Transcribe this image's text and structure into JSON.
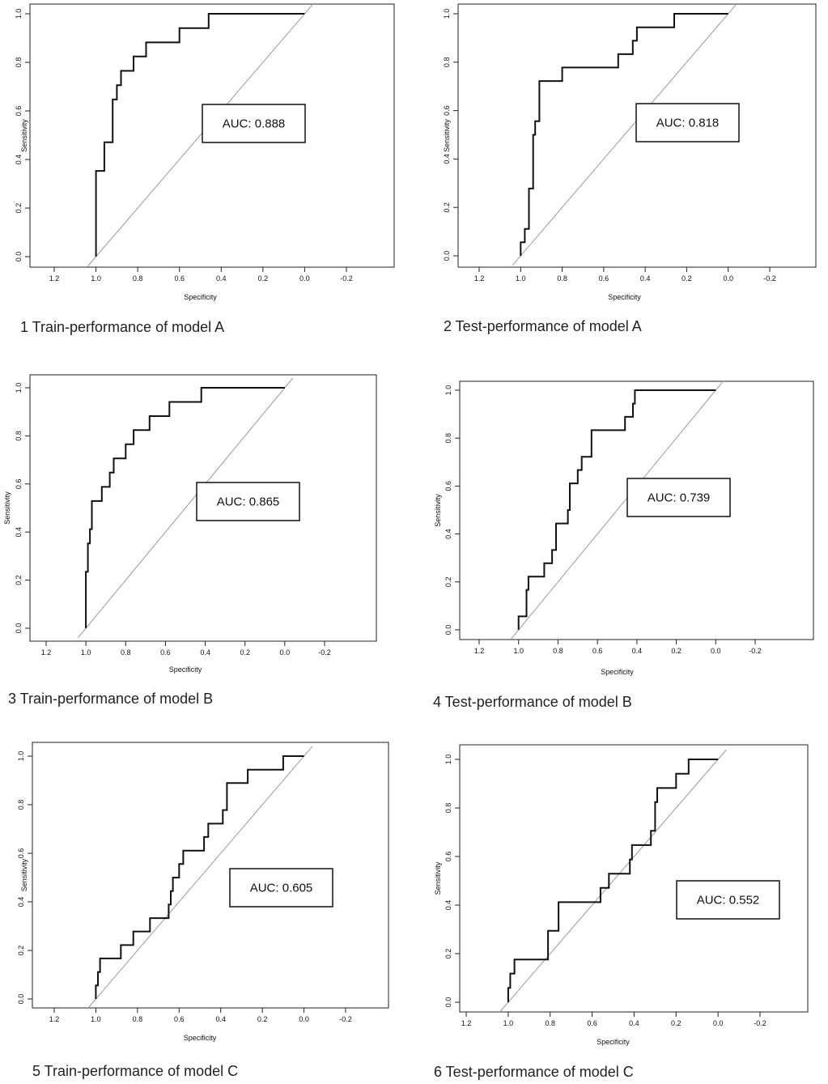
{
  "chart_data": [
    {
      "type": "line",
      "caption": "1 Train-performance of model A",
      "xlabel": "Specificity",
      "ylabel": "Sensitivity",
      "xlim": [
        1.2,
        -0.2
      ],
      "ylim": [
        0,
        1
      ],
      "x_ticks": [
        "1.2",
        "1.0",
        "0.8",
        "0.6",
        "0.4",
        "0.2",
        "0.0",
        "-0.2"
      ],
      "y_ticks": [
        "0.0",
        "0.2",
        "0.4",
        "0.6",
        "0.8",
        "1.0"
      ],
      "auc_label": "AUC:  0.888",
      "reference_line": [
        [
          1.0,
          0.0
        ],
        [
          0.0,
          1.0
        ]
      ],
      "series": [
        {
          "name": "ROC",
          "points": [
            [
              1.0,
              0.0
            ],
            [
              1.0,
              0.353
            ],
            [
              0.96,
              0.353
            ],
            [
              0.96,
              0.471
            ],
            [
              0.92,
              0.471
            ],
            [
              0.92,
              0.647
            ],
            [
              0.9,
              0.647
            ],
            [
              0.9,
              0.706
            ],
            [
              0.88,
              0.706
            ],
            [
              0.88,
              0.765
            ],
            [
              0.82,
              0.765
            ],
            [
              0.82,
              0.824
            ],
            [
              0.76,
              0.824
            ],
            [
              0.76,
              0.882
            ],
            [
              0.6,
              0.882
            ],
            [
              0.6,
              0.941
            ],
            [
              0.46,
              0.941
            ],
            [
              0.46,
              1.0
            ],
            [
              0.0,
              1.0
            ]
          ]
        }
      ]
    },
    {
      "type": "line",
      "caption": "2 Test-performance of model A",
      "xlabel": "Specificity",
      "ylabel": "Sensitivity",
      "xlim": [
        1.2,
        -0.2
      ],
      "ylim": [
        0,
        1
      ],
      "x_ticks": [
        "1.2",
        "1.0",
        "0.8",
        "0.6",
        "0.4",
        "0.2",
        "0.0",
        "-0.2"
      ],
      "y_ticks": [
        "0.0",
        "0.2",
        "0.4",
        "0.6",
        "0.8",
        "1.0"
      ],
      "auc_label": "AUC:  0.818",
      "reference_line": [
        [
          1.0,
          0.0
        ],
        [
          0.0,
          1.0
        ]
      ],
      "series": [
        {
          "name": "ROC",
          "points": [
            [
              1.0,
              0.0
            ],
            [
              1.0,
              0.056
            ],
            [
              0.98,
              0.056
            ],
            [
              0.98,
              0.111
            ],
            [
              0.96,
              0.111
            ],
            [
              0.96,
              0.278
            ],
            [
              0.94,
              0.278
            ],
            [
              0.94,
              0.5
            ],
            [
              0.93,
              0.5
            ],
            [
              0.93,
              0.556
            ],
            [
              0.91,
              0.556
            ],
            [
              0.91,
              0.722
            ],
            [
              0.8,
              0.722
            ],
            [
              0.8,
              0.778
            ],
            [
              0.53,
              0.778
            ],
            [
              0.53,
              0.833
            ],
            [
              0.46,
              0.833
            ],
            [
              0.46,
              0.889
            ],
            [
              0.44,
              0.889
            ],
            [
              0.44,
              0.944
            ],
            [
              0.26,
              0.944
            ],
            [
              0.26,
              1.0
            ],
            [
              0.0,
              1.0
            ]
          ]
        }
      ]
    },
    {
      "type": "line",
      "caption": "3 Train-performance of model B",
      "xlabel": "Specificity",
      "ylabel": "Sensitivity",
      "xlim": [
        1.2,
        -0.2
      ],
      "ylim": [
        0,
        1
      ],
      "x_ticks": [
        "1.2",
        "1.0",
        "0.8",
        "0.6",
        "0.4",
        "0.2",
        "0.0",
        "-0.2"
      ],
      "y_ticks": [
        "0.0",
        "0.2",
        "0.4",
        "0.6",
        "0.8",
        "1.0"
      ],
      "auc_label": "AUC:  0.865",
      "reference_line": [
        [
          1.0,
          0.0
        ],
        [
          0.0,
          1.0
        ]
      ],
      "series": [
        {
          "name": "ROC",
          "points": [
            [
              1.0,
              0.0
            ],
            [
              1.0,
              0.235
            ],
            [
              0.99,
              0.235
            ],
            [
              0.99,
              0.353
            ],
            [
              0.98,
              0.353
            ],
            [
              0.98,
              0.412
            ],
            [
              0.97,
              0.412
            ],
            [
              0.97,
              0.529
            ],
            [
              0.92,
              0.529
            ],
            [
              0.92,
              0.588
            ],
            [
              0.88,
              0.588
            ],
            [
              0.88,
              0.647
            ],
            [
              0.86,
              0.647
            ],
            [
              0.86,
              0.706
            ],
            [
              0.8,
              0.706
            ],
            [
              0.8,
              0.765
            ],
            [
              0.76,
              0.765
            ],
            [
              0.76,
              0.824
            ],
            [
              0.68,
              0.824
            ],
            [
              0.68,
              0.882
            ],
            [
              0.58,
              0.882
            ],
            [
              0.58,
              0.941
            ],
            [
              0.42,
              0.941
            ],
            [
              0.42,
              1.0
            ],
            [
              0.0,
              1.0
            ]
          ]
        }
      ]
    },
    {
      "type": "line",
      "caption": "4 Test-performance of model B",
      "xlabel": "Specificity",
      "ylabel": "Sensitivity",
      "xlim": [
        1.2,
        -0.2
      ],
      "ylim": [
        0,
        1
      ],
      "x_ticks": [
        "1.2",
        "1.0",
        "0.8",
        "0.6",
        "0.4",
        "0.2",
        "0.0",
        "-0.2"
      ],
      "y_ticks": [
        "0.0",
        "0.2",
        "0.4",
        "0.6",
        "0.8",
        "1.0"
      ],
      "auc_label": "AUC:  0.739",
      "reference_line": [
        [
          1.0,
          0.0
        ],
        [
          0.0,
          1.0
        ]
      ],
      "series": [
        {
          "name": "ROC",
          "points": [
            [
              1.0,
              0.0
            ],
            [
              1.0,
              0.056
            ],
            [
              0.96,
              0.056
            ],
            [
              0.96,
              0.167
            ],
            [
              0.95,
              0.167
            ],
            [
              0.95,
              0.222
            ],
            [
              0.87,
              0.222
            ],
            [
              0.87,
              0.278
            ],
            [
              0.83,
              0.278
            ],
            [
              0.83,
              0.333
            ],
            [
              0.81,
              0.333
            ],
            [
              0.81,
              0.444
            ],
            [
              0.75,
              0.444
            ],
            [
              0.75,
              0.5
            ],
            [
              0.74,
              0.5
            ],
            [
              0.74,
              0.611
            ],
            [
              0.7,
              0.611
            ],
            [
              0.7,
              0.667
            ],
            [
              0.68,
              0.667
            ],
            [
              0.68,
              0.722
            ],
            [
              0.63,
              0.722
            ],
            [
              0.63,
              0.833
            ],
            [
              0.46,
              0.833
            ],
            [
              0.46,
              0.889
            ],
            [
              0.42,
              0.889
            ],
            [
              0.42,
              0.944
            ],
            [
              0.41,
              0.944
            ],
            [
              0.41,
              1.0
            ],
            [
              0.0,
              1.0
            ]
          ]
        }
      ]
    },
    {
      "type": "line",
      "caption": "5 Train-performance of model C",
      "xlabel": "Specificity",
      "ylabel": "Sensitivity",
      "xlim": [
        1.2,
        -0.2
      ],
      "ylim": [
        0,
        1
      ],
      "x_ticks": [
        "1.2",
        "1.0",
        "0.8",
        "0.6",
        "0.4",
        "0.2",
        "0.0",
        "-0.2"
      ],
      "y_ticks": [
        "0.0",
        "0.2",
        "0.4",
        "0.6",
        "0.8",
        "1.0"
      ],
      "auc_label": "AUC:  0.605",
      "reference_line": [
        [
          1.0,
          0.0
        ],
        [
          0.0,
          1.0
        ]
      ],
      "series": [
        {
          "name": "ROC",
          "points": [
            [
              1.0,
              0.0
            ],
            [
              1.0,
              0.056
            ],
            [
              0.99,
              0.056
            ],
            [
              0.99,
              0.111
            ],
            [
              0.98,
              0.111
            ],
            [
              0.98,
              0.167
            ],
            [
              0.88,
              0.167
            ],
            [
              0.88,
              0.222
            ],
            [
              0.82,
              0.222
            ],
            [
              0.82,
              0.278
            ],
            [
              0.74,
              0.278
            ],
            [
              0.74,
              0.333
            ],
            [
              0.65,
              0.333
            ],
            [
              0.65,
              0.389
            ],
            [
              0.64,
              0.389
            ],
            [
              0.64,
              0.444
            ],
            [
              0.63,
              0.444
            ],
            [
              0.63,
              0.5
            ],
            [
              0.6,
              0.5
            ],
            [
              0.6,
              0.556
            ],
            [
              0.58,
              0.556
            ],
            [
              0.58,
              0.611
            ],
            [
              0.48,
              0.611
            ],
            [
              0.48,
              0.667
            ],
            [
              0.46,
              0.667
            ],
            [
              0.46,
              0.722
            ],
            [
              0.39,
              0.722
            ],
            [
              0.39,
              0.778
            ],
            [
              0.37,
              0.778
            ],
            [
              0.37,
              0.889
            ],
            [
              0.27,
              0.889
            ],
            [
              0.27,
              0.944
            ],
            [
              0.1,
              0.944
            ],
            [
              0.1,
              1.0
            ],
            [
              0.0,
              1.0
            ]
          ]
        }
      ]
    },
    {
      "type": "line",
      "caption": "6 Test-performance of model C",
      "xlabel": "Specificity",
      "ylabel": "Sensitivity",
      "xlim": [
        1.2,
        -0.2
      ],
      "ylim": [
        0,
        1
      ],
      "x_ticks": [
        "1.2",
        "1.0",
        "0.8",
        "0.6",
        "0.4",
        "0.2",
        "0.0",
        "-0.2"
      ],
      "y_ticks": [
        "0.0",
        "0.2",
        "0.4",
        "0.6",
        "0.8",
        "1.0"
      ],
      "auc_label": "AUC:  0.552",
      "reference_line": [
        [
          1.0,
          0.0
        ],
        [
          0.0,
          1.0
        ]
      ],
      "series": [
        {
          "name": "ROC",
          "points": [
            [
              1.0,
              0.0
            ],
            [
              1.0,
              0.059
            ],
            [
              0.99,
              0.059
            ],
            [
              0.99,
              0.118
            ],
            [
              0.97,
              0.118
            ],
            [
              0.97,
              0.176
            ],
            [
              0.81,
              0.176
            ],
            [
              0.81,
              0.294
            ],
            [
              0.76,
              0.294
            ],
            [
              0.76,
              0.412
            ],
            [
              0.56,
              0.412
            ],
            [
              0.56,
              0.471
            ],
            [
              0.52,
              0.471
            ],
            [
              0.52,
              0.529
            ],
            [
              0.42,
              0.529
            ],
            [
              0.42,
              0.588
            ],
            [
              0.41,
              0.588
            ],
            [
              0.41,
              0.647
            ],
            [
              0.32,
              0.647
            ],
            [
              0.32,
              0.706
            ],
            [
              0.3,
              0.706
            ],
            [
              0.3,
              0.824
            ],
            [
              0.29,
              0.824
            ],
            [
              0.29,
              0.882
            ],
            [
              0.2,
              0.882
            ],
            [
              0.2,
              0.941
            ],
            [
              0.14,
              0.941
            ],
            [
              0.14,
              1.0
            ],
            [
              0.0,
              1.0
            ]
          ]
        }
      ]
    }
  ]
}
